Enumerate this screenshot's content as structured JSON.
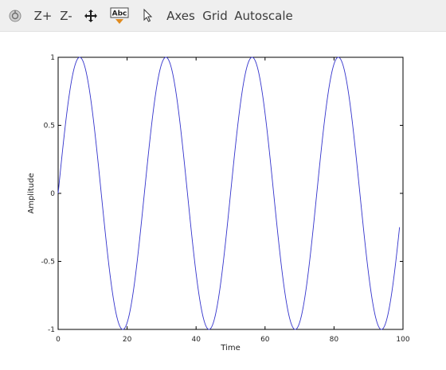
{
  "toolbar": {
    "items": [
      {
        "name": "rotate",
        "icon": "rotate-icon"
      },
      {
        "name": "zoom-in",
        "label": "Z+"
      },
      {
        "name": "zoom-out",
        "label": "Z-"
      },
      {
        "name": "pan",
        "icon": "pan-icon"
      },
      {
        "name": "text",
        "icon": "text-insert-icon",
        "label": "Abc"
      },
      {
        "name": "select",
        "icon": "pointer-icon"
      },
      {
        "name": "axes",
        "label": "Axes"
      },
      {
        "name": "grid",
        "label": "Grid"
      },
      {
        "name": "autoscale",
        "label": "Autoscale"
      }
    ]
  },
  "chart_data": {
    "type": "line",
    "title": "",
    "xlabel": "Time",
    "ylabel": "Amplitude",
    "xlim": [
      0,
      100
    ],
    "ylim": [
      -1,
      1
    ],
    "xticks": [
      "0",
      "20",
      "40",
      "60",
      "80",
      "100"
    ],
    "yticks": [
      "1",
      "0.5",
      "0",
      "-0.5",
      "-1"
    ],
    "grid": false,
    "line_color": "#3333cc",
    "series": [
      {
        "function": "sin(2*pi*x/25)",
        "period": 25,
        "amplitude": 1,
        "x_range": [
          0,
          99
        ],
        "step": 0.1
      }
    ]
  }
}
